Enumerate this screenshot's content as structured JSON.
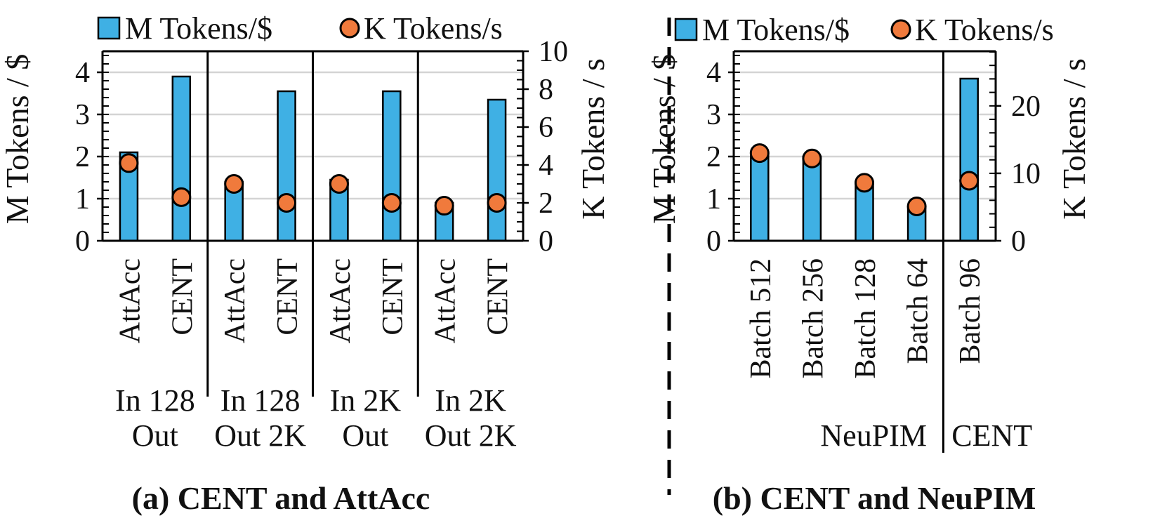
{
  "chart_data": [
    {
      "type": "bar",
      "id": "a",
      "caption": "(a) CENT and AttAcc",
      "legend": [
        {
          "label": "M Tokens/$",
          "kind": "bar",
          "color": "#3fb0e4"
        },
        {
          "label": "K Tokens/s",
          "kind": "marker",
          "color": "#f07a3c"
        }
      ],
      "ylabel_left": "M Tokens / $",
      "ylabel_right": "K Tokens / s",
      "ylim_left": [
        0,
        4.5
      ],
      "yticks_left": [
        "0",
        "1",
        "2",
        "3",
        "4"
      ],
      "ylim_right": [
        0,
        10
      ],
      "yticks_right": [
        "0",
        "2",
        "4",
        "6",
        "8",
        "10"
      ],
      "categories": [
        "AttAcc",
        "CENT",
        "AttAcc",
        "CENT",
        "AttAcc",
        "CENT",
        "AttAcc",
        "CENT"
      ],
      "groups": [
        {
          "line1": "In 128",
          "line2": "Out"
        },
        {
          "line1": "In 128",
          "line2": "Out 2K"
        },
        {
          "line1": "In 2K",
          "line2": "Out"
        },
        {
          "line1": "In 2K",
          "line2": "Out 2K"
        }
      ],
      "series": [
        {
          "name": "M Tokens/$",
          "axis": "left",
          "values": [
            2.1,
            3.9,
            1.4,
            3.55,
            1.45,
            3.55,
            0.9,
            3.35
          ]
        },
        {
          "name": "K Tokens/s",
          "axis": "right",
          "values": [
            4.1,
            2.3,
            3.0,
            2.0,
            3.0,
            2.0,
            1.85,
            2.0
          ]
        }
      ]
    },
    {
      "type": "bar",
      "id": "b",
      "caption": "(b) CENT and NeuPIM",
      "legend": [
        {
          "label": "M Tokens/$",
          "kind": "bar",
          "color": "#3fb0e4"
        },
        {
          "label": "K Tokens/s",
          "kind": "marker",
          "color": "#f07a3c"
        }
      ],
      "ylabel_left": "M Tokens / $",
      "ylabel_right": "K Tokens / s",
      "ylim_left": [
        0,
        4.5
      ],
      "yticks_left": [
        "0",
        "1",
        "2",
        "3",
        "4"
      ],
      "ylim_right": [
        0,
        28.1
      ],
      "yticks_right": [
        "0",
        "10",
        "20"
      ],
      "categories": [
        "Batch 512",
        "Batch 256",
        "Batch 128",
        "Batch 64",
        "Batch 96"
      ],
      "groups": [
        {
          "label": "NeuPIM",
          "count": 4
        },
        {
          "label": "CENT",
          "count": 1
        }
      ],
      "series": [
        {
          "name": "M Tokens/$",
          "axis": "left",
          "values": [
            2.05,
            2.0,
            1.4,
            0.8,
            3.85
          ]
        },
        {
          "name": "K Tokens/s",
          "axis": "right",
          "values": [
            13.0,
            12.2,
            8.6,
            5.1,
            8.9
          ]
        }
      ]
    }
  ]
}
